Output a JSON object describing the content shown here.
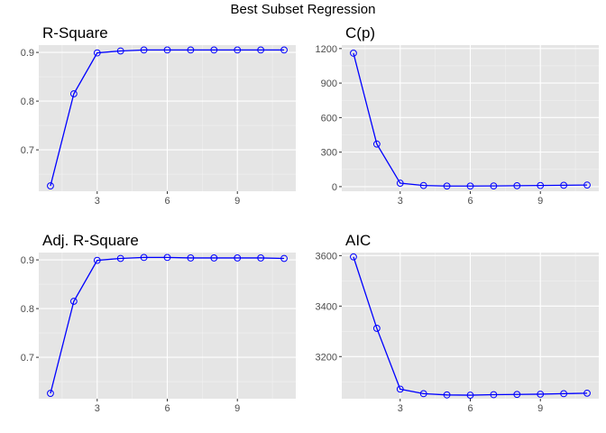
{
  "figure": {
    "title": "Best Subset Regression",
    "colors": {
      "panel_bg": "#e5e5e5",
      "grid_major": "#ffffff",
      "grid_minor": "#f2f2f2",
      "series": "#0000ff",
      "tick_text": "#4d4d4d"
    }
  },
  "chart_data": [
    {
      "type": "line",
      "title": "R-Square",
      "xlabel": "",
      "ylabel": "",
      "x": [
        1,
        2,
        3,
        4,
        5,
        6,
        7,
        8,
        9,
        10,
        11
      ],
      "series": [
        {
          "values": [
            0.626,
            0.815,
            0.899,
            0.903,
            0.905,
            0.905,
            0.905,
            0.905,
            0.905,
            0.905,
            0.905
          ],
          "marker": "open-circle"
        }
      ],
      "xlim": [
        0.5,
        11.5
      ],
      "ylim": [
        0.615,
        0.915
      ],
      "xticks": [
        3,
        6,
        9
      ],
      "xtick_labels": [
        "3",
        "6",
        "9"
      ],
      "yticks": [
        0.7,
        0.8,
        0.9
      ],
      "ytick_labels": [
        "0.7",
        "0.8",
        "0.9"
      ],
      "grid": true
    },
    {
      "type": "line",
      "title": "C(p)",
      "xlabel": "",
      "ylabel": "",
      "x": [
        1,
        2,
        3,
        4,
        5,
        6,
        7,
        8,
        9,
        10,
        11
      ],
      "series": [
        {
          "values": [
            1160,
            370,
            30,
            10,
            5,
            5,
            6,
            8,
            10,
            12,
            14
          ],
          "marker": "open-circle"
        }
      ],
      "xlim": [
        0.5,
        11.5
      ],
      "ylim": [
        -40,
        1230
      ],
      "xticks": [
        3,
        6,
        9
      ],
      "xtick_labels": [
        "3",
        "6",
        "9"
      ],
      "yticks": [
        0,
        300,
        600,
        900,
        1200
      ],
      "ytick_labels": [
        "0",
        "300",
        "600",
        "900",
        "1200"
      ],
      "grid": true
    },
    {
      "type": "line",
      "title": "Adj. R-Square",
      "xlabel": "",
      "ylabel": "",
      "x": [
        1,
        2,
        3,
        4,
        5,
        6,
        7,
        8,
        9,
        10,
        11
      ],
      "series": [
        {
          "values": [
            0.626,
            0.815,
            0.899,
            0.903,
            0.905,
            0.905,
            0.904,
            0.904,
            0.904,
            0.904,
            0.903
          ],
          "marker": "open-circle"
        }
      ],
      "xlim": [
        0.5,
        11.5
      ],
      "ylim": [
        0.615,
        0.915
      ],
      "xticks": [
        3,
        6,
        9
      ],
      "xtick_labels": [
        "3",
        "6",
        "9"
      ],
      "yticks": [
        0.7,
        0.8,
        0.9
      ],
      "ytick_labels": [
        "0.7",
        "0.8",
        "0.9"
      ],
      "grid": true
    },
    {
      "type": "line",
      "title": "AIC",
      "xlabel": "",
      "ylabel": "",
      "x": [
        1,
        2,
        3,
        4,
        5,
        6,
        7,
        8,
        9,
        10,
        11
      ],
      "series": [
        {
          "values": [
            3595,
            3312,
            3071,
            3053,
            3048,
            3047,
            3049,
            3050,
            3051,
            3053,
            3055
          ],
          "marker": "open-circle"
        }
      ],
      "xlim": [
        0.5,
        11.5
      ],
      "ylim": [
        3033,
        3612
      ],
      "xticks": [
        3,
        6,
        9
      ],
      "xtick_labels": [
        "3",
        "6",
        "9"
      ],
      "yticks": [
        3200,
        3400,
        3600
      ],
      "ytick_labels": [
        "3200",
        "3400",
        "3600"
      ],
      "grid": true
    }
  ]
}
